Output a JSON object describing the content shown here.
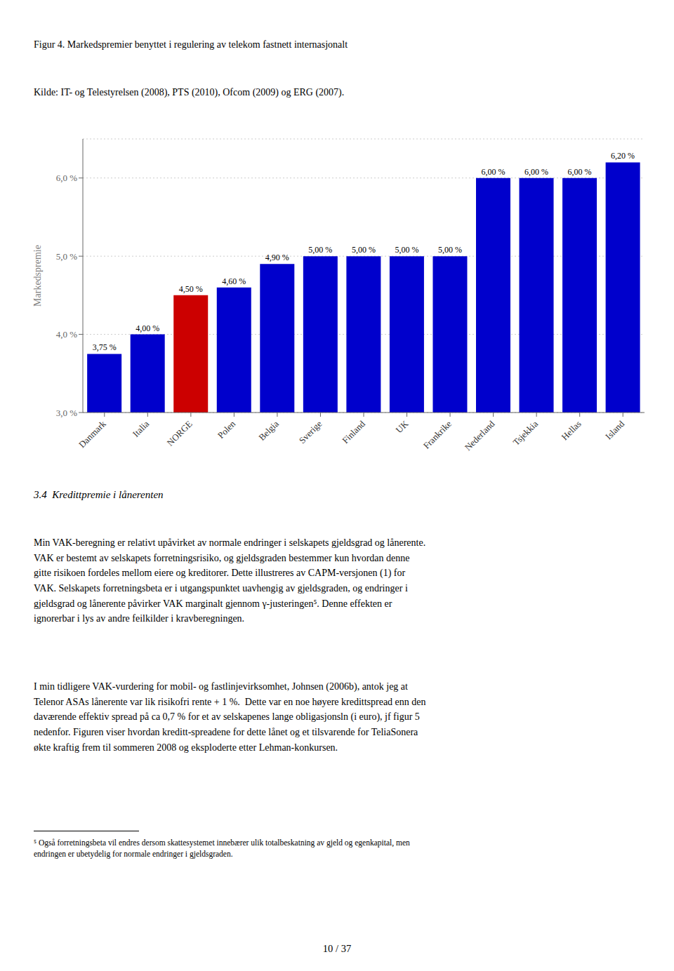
{
  "chart_data": {
    "type": "bar",
    "title": "Figur 4.  Markedspremier benyttet i regulering av telekom fastnett internasjonalt",
    "subtitle": "Kilde: IT- og Telestyrelsen (2008), PTS (2010), Ofcom (2009) og ERG (2007).",
    "categories": [
      "Danmark",
      "Italia",
      "NORGE",
      "Polen",
      "Belgia",
      "Sverige",
      "Finland",
      "UK",
      "Frankrike",
      "Nederland",
      "Tsjekkia",
      "Hellas",
      "Island"
    ],
    "values": [
      3.75,
      4.0,
      4.5,
      4.6,
      4.9,
      5.0,
      5.0,
      5.0,
      5.0,
      6.0,
      6.0,
      6.0,
      6.2
    ],
    "value_labels": [
      "3,75 %",
      "4,00 %",
      "4,50 %",
      "4,60 %",
      "4,90 %",
      "5,00 %",
      "5,00 %",
      "5,00 %",
      "5,00 %",
      "6,00 %",
      "6,00 %",
      "6,00 %",
      "6,20 %"
    ],
    "colors": [
      "#0000cc",
      "#0000cc",
      "#cc0000",
      "#0000cc",
      "#0000cc",
      "#0000cc",
      "#0000cc",
      "#0000cc",
      "#0000cc",
      "#0000cc",
      "#0000cc",
      "#0000cc",
      "#0000cc"
    ],
    "ylabel": "Markedspremie",
    "ylim": [
      3.0,
      6.5
    ],
    "yticks": [
      {
        "value": 3.0,
        "label": "3,0 %"
      },
      {
        "value": 4.0,
        "label": "4,0 %"
      },
      {
        "value": 5.0,
        "label": "5,0 %"
      },
      {
        "value": 6.0,
        "label": "6,0 %"
      }
    ],
    "grid": true,
    "data_labels": true,
    "annotations": [
      "3.4  Kredittpremie i lånerenten",
      "Min VAK-beregning er relativt upåvirket av normale endringer i selskapets gjeldsgrad og lånerente.\nVAK er bestemt av selskapets forretningsrisiko, og gjeldsgraden bestemmer kun hvordan denne\ngitte risikoen fordeles mellom eiere og kreditorer. Dette illustreres av CAPM-versjonen (1) for\nVAK. Selskapets forretningsbeta er i utgangspunktet uavhengig av gjeldsgraden, og endringer i\ngjeldsgrad og lånerente påvirker VAK marginalt gjennom γ-justeringen⁵. Denne effekten er\nignorerbar i lys av andre feilkilder i kravberegningen.",
      "I min tidligere VAK-vurdering for mobil- og fastlinjevirksomhet, Johnsen (2006b), antok jeg at\nTelenor ASAs lånerente var lik risikofri rente + 1 %.  Dette var en noe høyere kredittspread enn den\ndaværende effektiv spread på ca 0,7 % for et av selskapenes lange obligasjonsln (i euro), jf figur 5\nnedenfor. Figuren viser hvordan kreditt-spreadene for dette lånet og et tilsvarende for TeliaSonera\nøkte kraftig frem til sommeren 2008 og eksploderte etter Lehman-konkursen.",
      "⁵ Også forretningsbeta vil endres dersom skattesystemet innebærer ulik totalbeskatning av gjeld og egenkapital, men\nendringen er ubetydelig for normale endringer i gjeldsgraden.",
      "10 / 37"
    ]
  }
}
